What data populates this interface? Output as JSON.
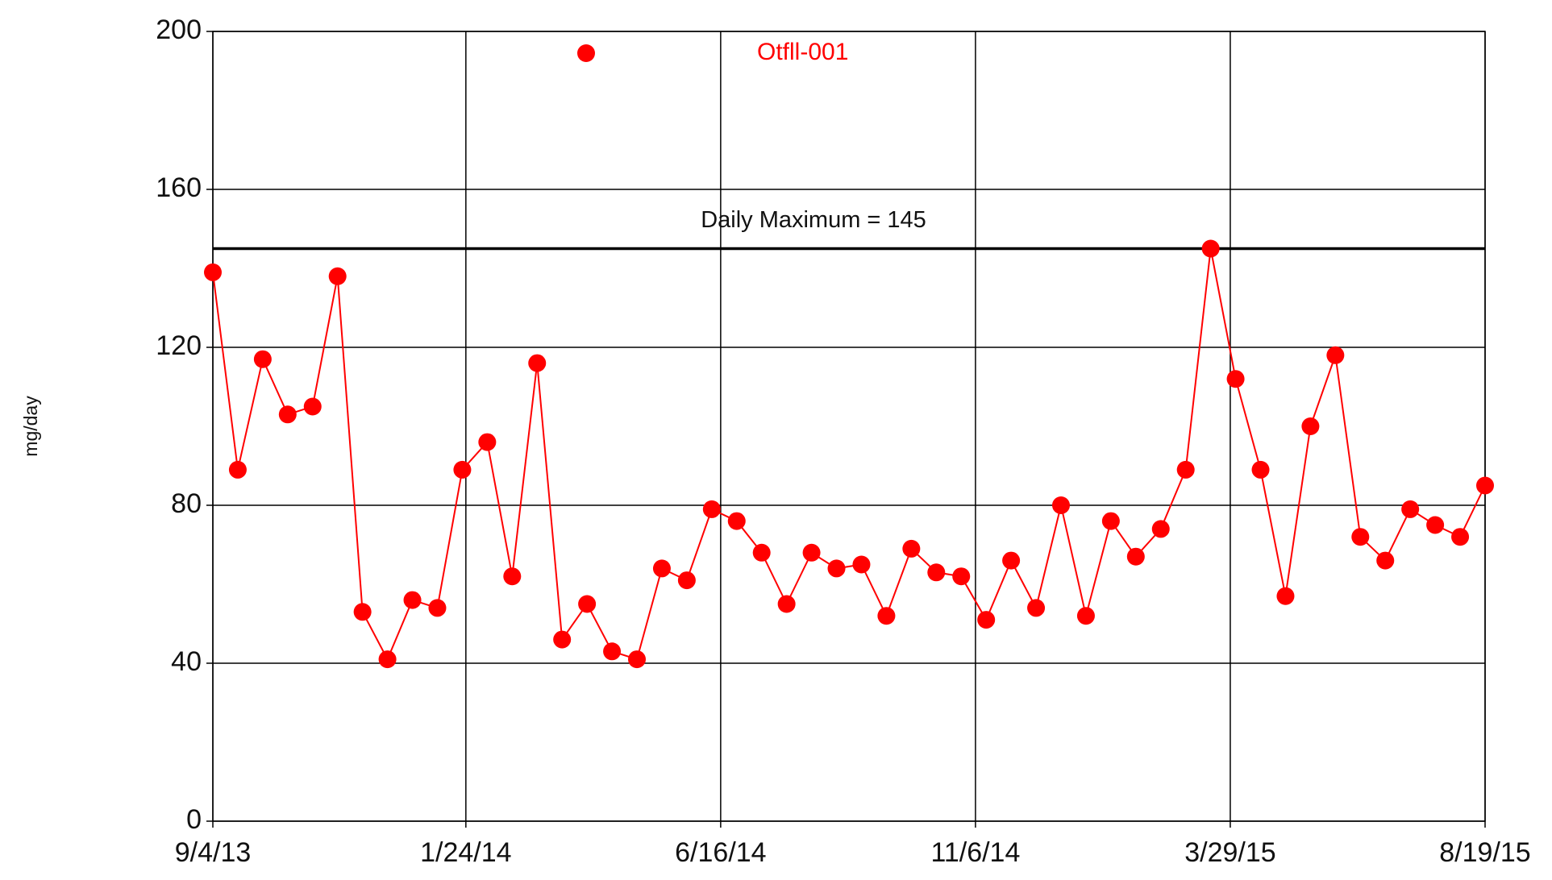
{
  "chart_data": {
    "type": "line",
    "y_label": "mg/day",
    "x": [
      "9/4/13",
      "9/18/13",
      "10/2/13",
      "10/16/13",
      "10/30/13",
      "11/13/13",
      "11/27/13",
      "12/11/13",
      "12/25/13",
      "1/8/14",
      "1/22/14",
      "2/5/14",
      "2/19/14",
      "3/5/14",
      "3/19/14",
      "4/2/14",
      "4/16/14",
      "4/30/14",
      "5/14/14",
      "5/28/14",
      "6/11/14",
      "6/25/14",
      "7/9/14",
      "7/23/14",
      "8/6/14",
      "8/20/14",
      "9/3/14",
      "9/17/14",
      "10/1/14",
      "10/15/14",
      "10/29/14",
      "11/12/14",
      "11/26/14",
      "12/10/14",
      "12/24/14",
      "1/7/15",
      "1/21/15",
      "2/4/15",
      "2/18/15",
      "3/4/15",
      "3/18/15",
      "4/1/15",
      "4/15/15",
      "4/29/15",
      "5/13/15",
      "5/27/15",
      "6/10/15",
      "6/24/15",
      "7/8/15",
      "7/22/15",
      "8/5/15",
      "8/19/15"
    ],
    "series": [
      {
        "name": "Otfll-001",
        "color": "#ff0000",
        "values": [
          139,
          89,
          117,
          103,
          105,
          138,
          53,
          41,
          56,
          54,
          89,
          96,
          62,
          116,
          46,
          55,
          43,
          41,
          64,
          61,
          79,
          76,
          68,
          55,
          68,
          64,
          65,
          52,
          69,
          63,
          62,
          51,
          66,
          54,
          80,
          52,
          76,
          67,
          74,
          89,
          145,
          112,
          89,
          57,
          100,
          118,
          72,
          66,
          79,
          75,
          72,
          85
        ]
      }
    ],
    "reference_line": {
      "value": 145,
      "label": "Daily Maximum = 145",
      "color": "#000000"
    },
    "xlim": [
      "9/4/13",
      "8/19/15"
    ],
    "xticks": [
      "9/4/13",
      "1/24/14",
      "6/16/14",
      "11/6/14",
      "3/29/15",
      "8/19/15"
    ],
    "ylim": [
      0,
      200
    ],
    "yticks": [
      0,
      40,
      80,
      120,
      160,
      200
    ],
    "grid": true
  }
}
